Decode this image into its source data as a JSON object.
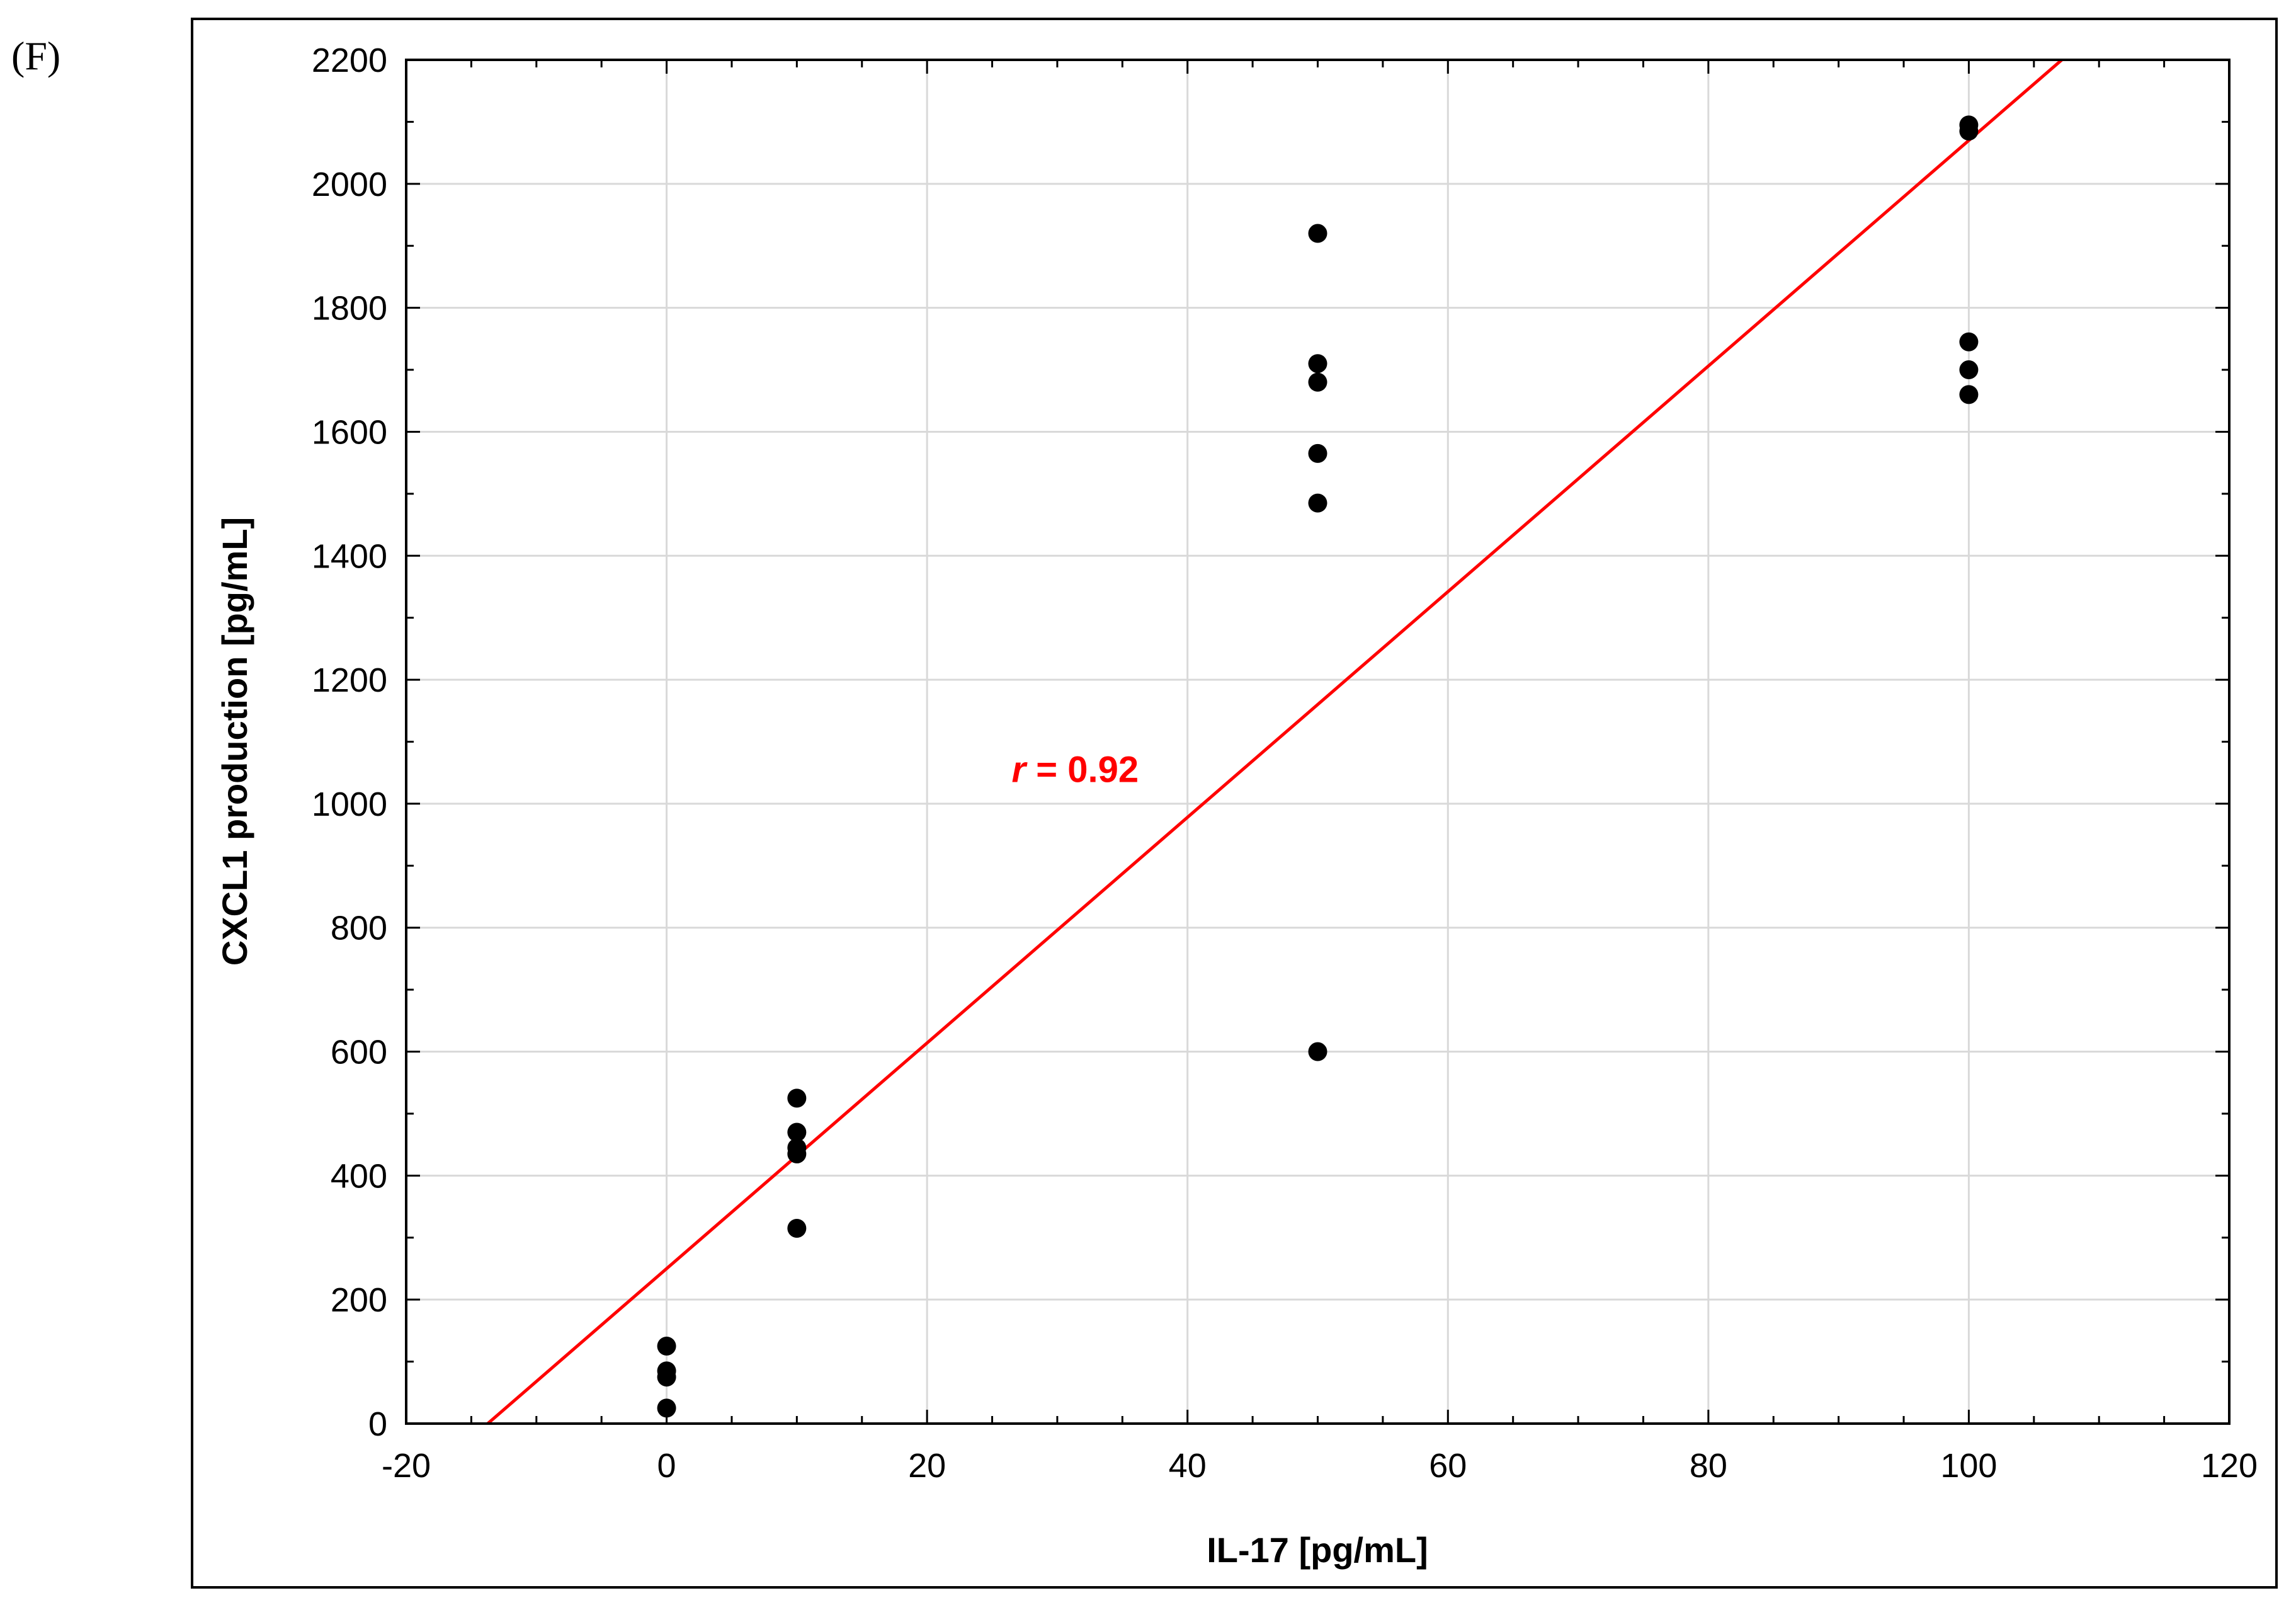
{
  "panel_label": "(F)",
  "colors": {
    "points": "#000000",
    "fit_line": "#ff0000",
    "grid": "#d9d9d9"
  },
  "chart_data": {
    "type": "scatter",
    "xlabel": "IL-17 [pg/mL]",
    "ylabel": "CXCL1 production [pg/mL]",
    "xlim": [
      -20,
      120
    ],
    "ylim": [
      0,
      2200
    ],
    "x_ticks": [
      -20,
      0,
      20,
      40,
      60,
      80,
      100,
      120
    ],
    "y_ticks": [
      0,
      200,
      400,
      600,
      800,
      1000,
      1200,
      1400,
      1600,
      1800,
      2000,
      2200
    ],
    "grid": true,
    "points": [
      {
        "x": 0,
        "y": 125
      },
      {
        "x": 0,
        "y": 85
      },
      {
        "x": 0,
        "y": 75
      },
      {
        "x": 0,
        "y": 25
      },
      {
        "x": 10,
        "y": 525
      },
      {
        "x": 10,
        "y": 470
      },
      {
        "x": 10,
        "y": 445
      },
      {
        "x": 10,
        "y": 435
      },
      {
        "x": 10,
        "y": 315
      },
      {
        "x": 50,
        "y": 1920
      },
      {
        "x": 50,
        "y": 1710
      },
      {
        "x": 50,
        "y": 1680
      },
      {
        "x": 50,
        "y": 1565
      },
      {
        "x": 50,
        "y": 1485
      },
      {
        "x": 50,
        "y": 600
      },
      {
        "x": 100,
        "y": 2095
      },
      {
        "x": 100,
        "y": 2085
      },
      {
        "x": 100,
        "y": 1745
      },
      {
        "x": 100,
        "y": 1700
      },
      {
        "x": 100,
        "y": 1660
      }
    ],
    "fit_line": {
      "slope": 18.2,
      "intercept": 250
    },
    "annotation": {
      "r_symbol": "r",
      "r_text": " = 0.92",
      "x": 26.5,
      "y": 1035
    }
  }
}
